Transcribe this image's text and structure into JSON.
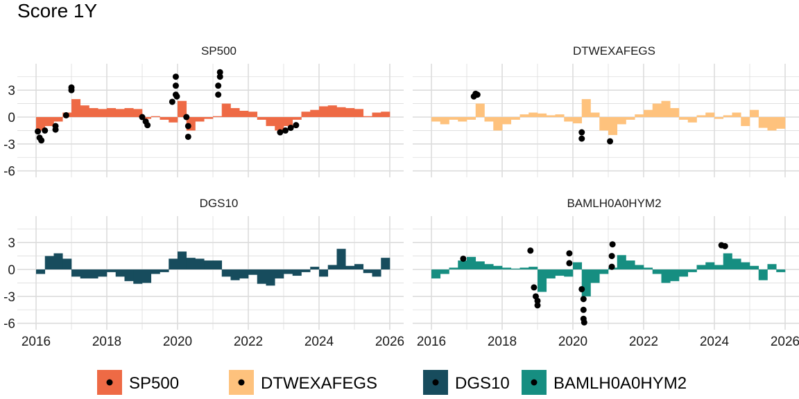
{
  "chart_data": {
    "type": "bar",
    "title": "Score 1Y",
    "xlabel": "",
    "ylabel": "",
    "xlim": [
      2016,
      2026
    ],
    "ylim": [
      -6,
      5.5
    ],
    "x_ticks": [
      "2016",
      "2018",
      "2020",
      "2022",
      "2024",
      "2026"
    ],
    "y_ticks": [
      "3",
      "0",
      "-3",
      "-6"
    ],
    "legend_position": "bottom",
    "x": [
      2016,
      2016.25,
      2016.5,
      2016.75,
      2017,
      2017.25,
      2017.5,
      2017.75,
      2018,
      2018.25,
      2018.5,
      2018.75,
      2019,
      2019.25,
      2019.5,
      2019.75,
      2020,
      2020.25,
      2020.5,
      2020.75,
      2021,
      2021.25,
      2021.5,
      2021.75,
      2022,
      2022.25,
      2022.5,
      2022.75,
      2023,
      2023.25,
      2023.5,
      2023.75,
      2024,
      2024.25,
      2024.5,
      2024.75,
      2025,
      2025.25,
      2025.5,
      2025.75
    ],
    "series": [
      {
        "name": "SP500",
        "color": "#EE6A45",
        "values": [
          -1.5,
          -1.0,
          -0.5,
          0.5,
          2.0,
          1.3,
          1.0,
          0.9,
          1.0,
          0.9,
          1.0,
          0.9,
          -0.2,
          0.1,
          -0.3,
          -0.6,
          1.8,
          -1.5,
          -0.5,
          -0.2,
          0.1,
          1.5,
          1.0,
          0.7,
          0.6,
          -0.3,
          -1.0,
          -1.5,
          -1.0,
          -0.3,
          0.6,
          0.8,
          1.2,
          1.3,
          1.1,
          1.0,
          0.9,
          0.1,
          0.5,
          0.6
        ],
        "extremes": [
          [
            2016.05,
            -1.6
          ],
          [
            2016.1,
            -2.3
          ],
          [
            2016.15,
            -2.6
          ],
          [
            2016.25,
            -1.5
          ],
          [
            2016.55,
            -1.0
          ],
          [
            2016.55,
            -1.4
          ],
          [
            2016.85,
            0.2
          ],
          [
            2017.0,
            3.0
          ],
          [
            2017.0,
            3.3
          ],
          [
            2019.0,
            0.0
          ],
          [
            2019.1,
            -0.5
          ],
          [
            2019.15,
            -0.9
          ],
          [
            2019.85,
            1.7
          ],
          [
            2019.95,
            2.5
          ],
          [
            2019.95,
            3.5
          ],
          [
            2019.95,
            4.5
          ],
          [
            2019.98,
            2.3
          ],
          [
            2020.25,
            0.0
          ],
          [
            2020.3,
            -1.0
          ],
          [
            2020.3,
            -2.2
          ],
          [
            2021.15,
            2.5
          ],
          [
            2021.15,
            3.5
          ],
          [
            2021.2,
            4.5
          ],
          [
            2021.2,
            5.0
          ],
          [
            2022.9,
            -1.7
          ],
          [
            2023.05,
            -1.5
          ],
          [
            2023.2,
            -1.2
          ],
          [
            2023.35,
            -0.9
          ]
        ]
      },
      {
        "name": "DTWEXAFEGS",
        "color": "#FEC27D",
        "values": [
          -0.5,
          -0.8,
          -0.3,
          -0.5,
          -0.3,
          1.5,
          -0.5,
          -1.5,
          -0.8,
          -0.3,
          0.3,
          0.5,
          0.4,
          0.2,
          0.3,
          -0.5,
          -0.7,
          2.0,
          0.5,
          -1.5,
          -2.0,
          -0.8,
          -0.3,
          0.3,
          0.8,
          1.5,
          1.8,
          1.0,
          -0.3,
          -0.6,
          0.2,
          0.5,
          -0.2,
          0.2,
          0.5,
          -1.0,
          0.8,
          -1.2,
          -1.5,
          -1.3
        ],
        "extremes": [
          [
            2017.2,
            2.3
          ],
          [
            2017.25,
            2.6
          ],
          [
            2017.3,
            2.5
          ],
          [
            2020.25,
            -1.7
          ],
          [
            2020.25,
            -2.4
          ],
          [
            2021.05,
            -2.7
          ]
        ]
      },
      {
        "name": "DGS10",
        "color": "#174C5D",
        "values": [
          -0.5,
          1.5,
          1.8,
          1.2,
          -0.8,
          -1.0,
          -1.0,
          -0.8,
          -0.3,
          -0.8,
          -1.3,
          -1.6,
          -1.5,
          -0.5,
          -0.3,
          1.2,
          2.0,
          1.3,
          1.2,
          1.0,
          1.0,
          -0.8,
          -1.2,
          -1.0,
          -0.6,
          -1.6,
          -1.8,
          -1.0,
          -0.5,
          -0.7,
          -0.3,
          0.3,
          -0.8,
          0.5,
          2.3,
          0.4,
          0.6,
          -0.4,
          -0.8,
          1.3
        ],
        "extremes": []
      },
      {
        "name": "BAMLH0A0HYM2",
        "color": "#168E81",
        "values": [
          -1.0,
          -0.5,
          0.2,
          1.0,
          1.4,
          0.9,
          0.6,
          0.4,
          0.2,
          0.1,
          0.2,
          0.3,
          -2.5,
          -1.0,
          -0.7,
          -0.8,
          0.8,
          -3.0,
          -1.5,
          -0.5,
          0.2,
          1.6,
          1.0,
          0.5,
          0.2,
          -0.5,
          -1.5,
          -1.3,
          -0.8,
          -0.3,
          0.5,
          0.8,
          0.5,
          1.8,
          1.2,
          0.8,
          0.4,
          -1.2,
          0.6,
          -0.3
        ],
        "extremes": [
          [
            2016.9,
            1.2
          ],
          [
            2018.8,
            2.1
          ],
          [
            2018.9,
            -2.0
          ],
          [
            2018.95,
            -3.0
          ],
          [
            2019.0,
            -3.5
          ],
          [
            2019.0,
            -4.0
          ],
          [
            2019.9,
            1.8
          ],
          [
            2019.9,
            0.7
          ],
          [
            2020.25,
            -2.2
          ],
          [
            2020.3,
            -3.3
          ],
          [
            2020.3,
            -4.5
          ],
          [
            2020.3,
            -5.5
          ],
          [
            2020.32,
            -5.9
          ],
          [
            2021.1,
            0.3
          ],
          [
            2021.1,
            1.5
          ],
          [
            2021.12,
            2.8
          ],
          [
            2024.2,
            2.7
          ],
          [
            2024.3,
            2.6
          ]
        ]
      }
    ]
  }
}
